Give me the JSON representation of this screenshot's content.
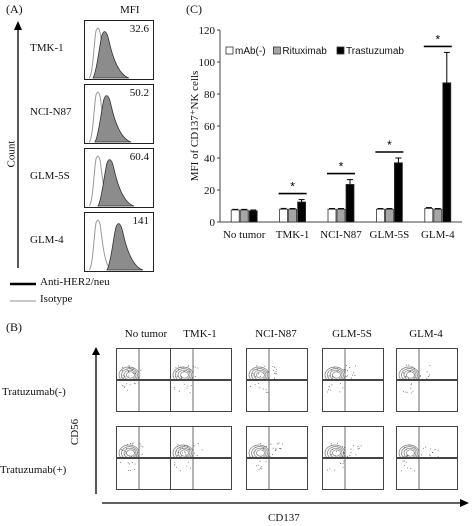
{
  "panel_a": {
    "letter": "(A)",
    "mfi_header": "MFI",
    "y_axis_label": "Count",
    "rows": [
      {
        "label": "TMK-1",
        "mfi": "32.6"
      },
      {
        "label": "NCI-N87",
        "mfi": "50.2"
      },
      {
        "label": "GLM-5S",
        "mfi": "60.4"
      },
      {
        "label": "GLM-4",
        "mfi": "141"
      }
    ],
    "legend": [
      {
        "label": "Anti-HER2/neu",
        "color": "#000000"
      },
      {
        "label": "Isotype",
        "color": "#c8c8c8"
      }
    ],
    "colors": {
      "fill": "#8c8c8c",
      "isotype": "#9a9a9a"
    }
  },
  "panel_b": {
    "letter": "(B)",
    "columns": [
      "No tumor",
      "TMK-1",
      "NCI-N87",
      "GLM-5S",
      "GLM-4"
    ],
    "rows": [
      "Tratuzumab(-)",
      "Tratuzumab(+)"
    ],
    "x_axis_label": "CD137",
    "y_axis_label": "CD56"
  },
  "panel_c": {
    "letter": "(C)"
  },
  "chart_data": {
    "type": "bar",
    "categories": [
      "No tumor",
      "TMK-1",
      "NCI-N87",
      "GLM-5S",
      "GLM-4"
    ],
    "series": [
      {
        "name": "mAb(-)",
        "values": [
          7.5,
          8,
          8,
          8,
          8.5
        ],
        "errors": [
          0.4,
          0.5,
          0.4,
          0.4,
          0.5
        ],
        "color": "#ffffff"
      },
      {
        "name": "Rituximab",
        "values": [
          7.5,
          8,
          8,
          8,
          8
        ],
        "errors": [
          0.4,
          0.4,
          0.4,
          0.4,
          0.4
        ],
        "color": "#a6a6a6"
      },
      {
        "name": "Trastuzumab",
        "values": [
          7,
          12.5,
          23.5,
          37,
          87
        ],
        "errors": [
          0.5,
          1.5,
          3,
          3,
          19
        ],
        "color": "#000000"
      }
    ],
    "significance": [
      {
        "category": "TMK-1",
        "label": "*"
      },
      {
        "category": "NCI-N87",
        "label": "*"
      },
      {
        "category": "GLM-5S",
        "label": "*"
      },
      {
        "category": "GLM-4",
        "label": "*"
      }
    ],
    "ylabel": "MFI of CD137⁺NK cells",
    "xlabel": "",
    "ylim": [
      0,
      120
    ],
    "yticks": [
      0,
      20,
      40,
      60,
      80,
      100,
      120
    ],
    "grid": false,
    "legend_position": "top-left"
  }
}
